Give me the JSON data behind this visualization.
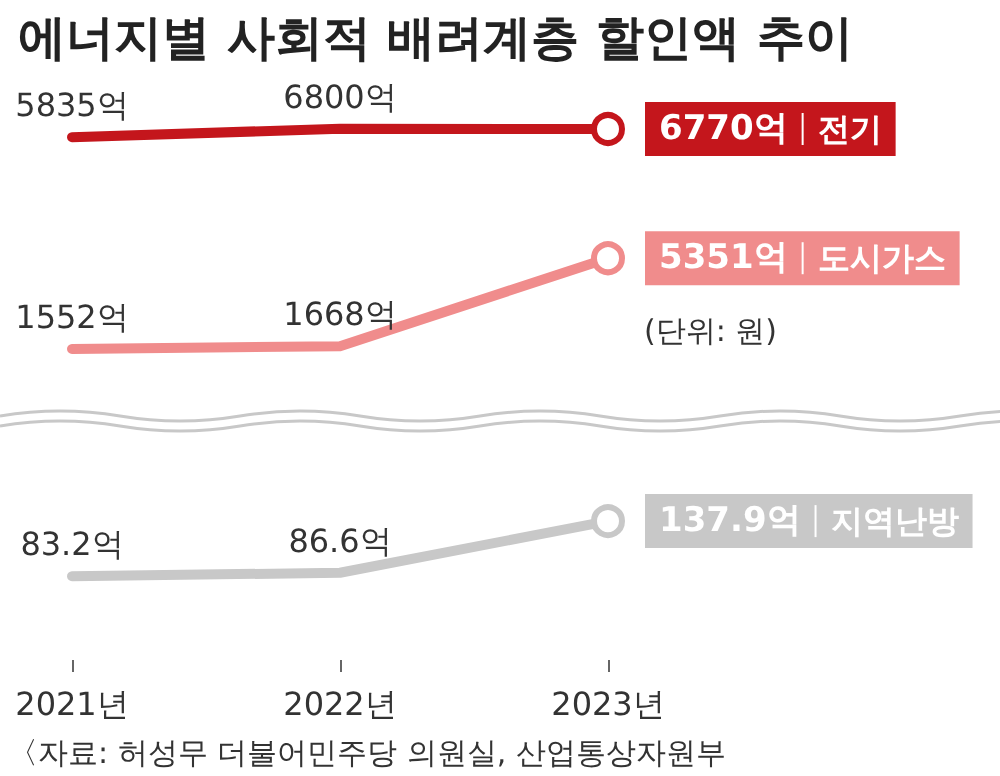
{
  "chart_data": [
    {
      "type": "line",
      "title": "에너지별 사회적 배려계층 할인액 추이",
      "data_labels": true,
      "series": [
        {
          "name": "전기",
          "color": "#c4161c",
          "values": [
            5835,
            6800,
            6770
          ],
          "value_labels": [
            "5835억",
            "6800억",
            "6770억"
          ]
        }
      ]
    },
    {
      "type": "line",
      "data_labels": true,
      "annotations": [
        "(단위: 원)"
      ],
      "series": [
        {
          "name": "도시가스",
          "color": "#f08c8c",
          "values": [
            1552,
            1668,
            5351
          ],
          "value_labels": [
            "1552억",
            "1668억",
            "5351억"
          ]
        }
      ]
    },
    {
      "type": "line",
      "categories": [
        "2021년",
        "2022년",
        "2023년"
      ],
      "tick_labels": "x",
      "data_labels": true,
      "annotations": [
        "〈자료: 허성무 더불어민주당 의원실, 산업통상자원부"
      ],
      "series": [
        {
          "name": "지역난방",
          "color": "#c8c8c8",
          "values": [
            83.2,
            86.6,
            137.9
          ],
          "value_labels": [
            "83.2억",
            "86.6억",
            "137.9억"
          ]
        }
      ]
    }
  ]
}
